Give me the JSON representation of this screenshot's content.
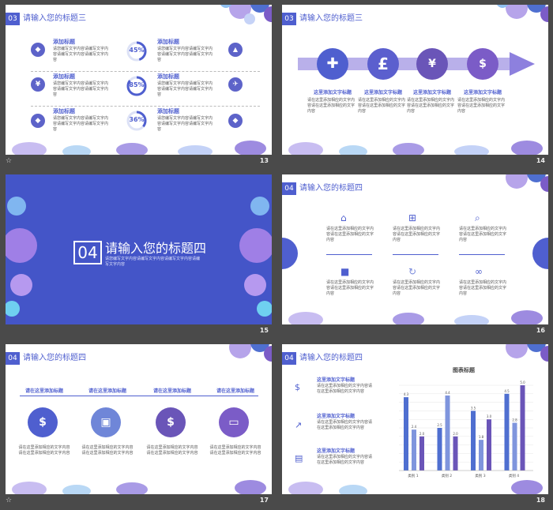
{
  "slides": {
    "s13": {
      "num_badge": "03",
      "title": "请输入您的标题三",
      "heading": "添加标题",
      "body": "请您编写文字内容请编写文字内容请编写文字内容请编写文字内容",
      "percents": [
        "45%",
        "85%",
        "36%"
      ],
      "left_icons": [
        "diamond-icon",
        "yen-icon",
        "diamond-icon"
      ],
      "right_icons": [
        "triangle-icon",
        "plane-icon",
        "diamond-icon"
      ],
      "page": "13"
    },
    "s14": {
      "num_badge": "03",
      "title": "请输入您的标题三",
      "heading": "这里添加文字标题",
      "body": "请在这里添加相应的文字内容请在这里添加相应的文字内容",
      "icons": [
        "plus-icon",
        "pound-icon",
        "money-bag-icon",
        "briefcase-icon"
      ],
      "page": "14"
    },
    "s15": {
      "num_badge": "04",
      "title": "请输入您的标题四",
      "subtitle": "请您编写文字内容请编写文字内容请编写文字内容请编写文字内容",
      "page": "15"
    },
    "s16": {
      "num_badge": "04",
      "title": "请输入您的标题四",
      "body": "请在这里添加相应的文字内容请在这里添加相应的文字内容",
      "icons": [
        "home-icon",
        "plus-square-icon",
        "search-icon",
        "lock-icon",
        "refresh-icon",
        "link-icon"
      ],
      "page": "16"
    },
    "s17": {
      "num_badge": "04",
      "title": "请输入您的标题四",
      "heading": "请在这里添加标题",
      "body": "请在这里添加相应的文字内容请在这里添加相应的文字内容",
      "icons": [
        "money-bag-icon",
        "train-icon",
        "briefcase-icon",
        "credit-card-icon"
      ],
      "page": "17"
    },
    "s18": {
      "num_badge": "04",
      "title": "请输入您的标题四",
      "heading": "这里添加文字标题",
      "body": "请在这里添加相应的文字内容请在这里添加相应的文字内容",
      "icons": [
        "hand-money-icon",
        "chart-up-icon",
        "chart-screen-icon"
      ],
      "page": "18"
    }
  },
  "chart_data": {
    "type": "bar",
    "title": "图表标题",
    "categories": [
      "类别 1",
      "类别 2",
      "类别 3",
      "类别 4"
    ],
    "series": [
      {
        "values": [
          4.3,
          2.5,
          3.5,
          4.5
        ]
      },
      {
        "values": [
          2.4,
          4.4,
          1.8,
          2.8
        ]
      },
      {
        "values": [
          2.0,
          2.0,
          3.0,
          5.0
        ]
      }
    ],
    "ylim": [
      0,
      5
    ],
    "colors": [
      "#4f6fd0",
      "#7f95dd",
      "#6a55b8"
    ]
  },
  "theme": {
    "accent": "#4f5fcf",
    "purple": "#7b5cc7",
    "dark_bg": "#4455c8"
  }
}
